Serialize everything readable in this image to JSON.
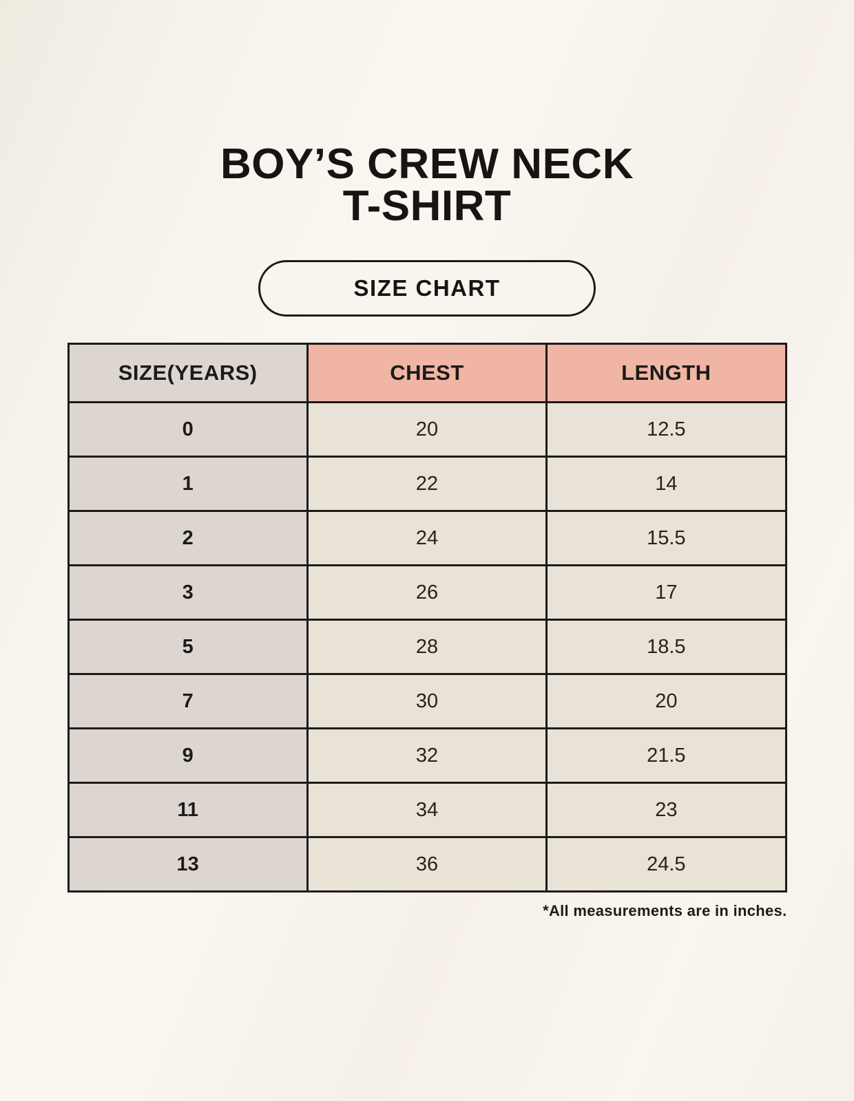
{
  "header": {
    "title_line1": "BOY’S CREW NECK",
    "title_line2": "T-SHIRT",
    "badge_label": "SIZE CHART"
  },
  "table": {
    "columns": [
      "SIZE(YEARS)",
      "CHEST",
      "LENGTH"
    ],
    "rows": [
      [
        "0",
        "20",
        "12.5"
      ],
      [
        "1",
        "22",
        "14"
      ],
      [
        "2",
        "24",
        "15.5"
      ],
      [
        "3",
        "26",
        "17"
      ],
      [
        "5",
        "28",
        "18.5"
      ],
      [
        "7",
        "30",
        "20"
      ],
      [
        "9",
        "32",
        "21.5"
      ],
      [
        "11",
        "34",
        "23"
      ],
      [
        "13",
        "36",
        "24.5"
      ]
    ]
  },
  "footnote": "*All measurements are in inches.",
  "colors": {
    "background": "#f7f3ec",
    "header_accent": "#f0b5a4",
    "size_column": "#ddd6d0",
    "cell": "#e9e2d7",
    "border": "#1c1b19"
  },
  "chart_data": {
    "type": "table",
    "title": "BOY’S CREW NECK T-SHIRT",
    "subtitle": "SIZE CHART",
    "columns": [
      "SIZE(YEARS)",
      "CHEST",
      "LENGTH"
    ],
    "rows": [
      [
        "0",
        "20",
        "12.5"
      ],
      [
        "1",
        "22",
        "14"
      ],
      [
        "2",
        "24",
        "15.5"
      ],
      [
        "3",
        "26",
        "17"
      ],
      [
        "5",
        "28",
        "18.5"
      ],
      [
        "7",
        "30",
        "20"
      ],
      [
        "9",
        "32",
        "21.5"
      ],
      [
        "11",
        "34",
        "23"
      ],
      [
        "13",
        "36",
        "24.5"
      ]
    ],
    "footnote": "*All measurements are in inches.",
    "units": "inches"
  }
}
